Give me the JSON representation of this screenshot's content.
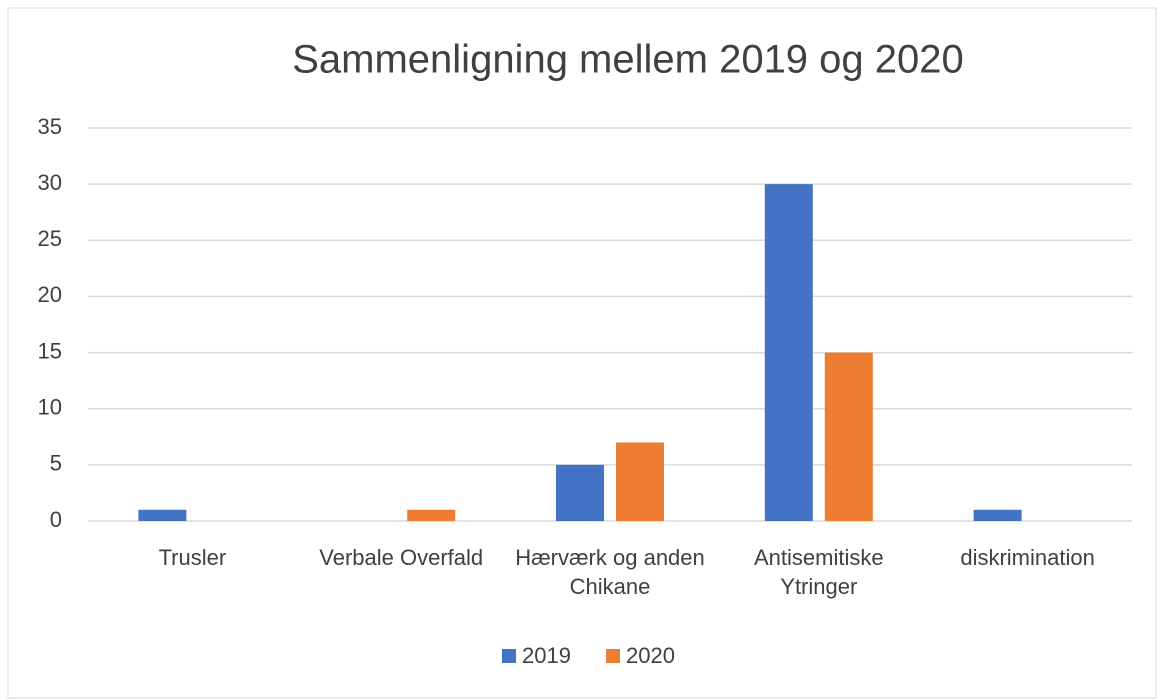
{
  "chart_data": {
    "type": "bar",
    "title": "Sammenligning mellem 2019 og 2020",
    "categories": [
      "Trusler",
      "Verbale Overfald",
      "Hærværk og anden Chikane",
      "Antisemitiske Ytringer",
      "diskrimination"
    ],
    "series": [
      {
        "name": "2019",
        "color": "#4472c4",
        "values": [
          1,
          0,
          5,
          30,
          1
        ]
      },
      {
        "name": "2020",
        "color": "#ed7d31",
        "values": [
          0,
          1,
          7,
          15,
          0
        ]
      }
    ],
    "ylim": [
      0,
      35
    ],
    "yticks": [
      0,
      5,
      10,
      15,
      20,
      25,
      30,
      35
    ],
    "grid": true,
    "legend": "bottom"
  }
}
